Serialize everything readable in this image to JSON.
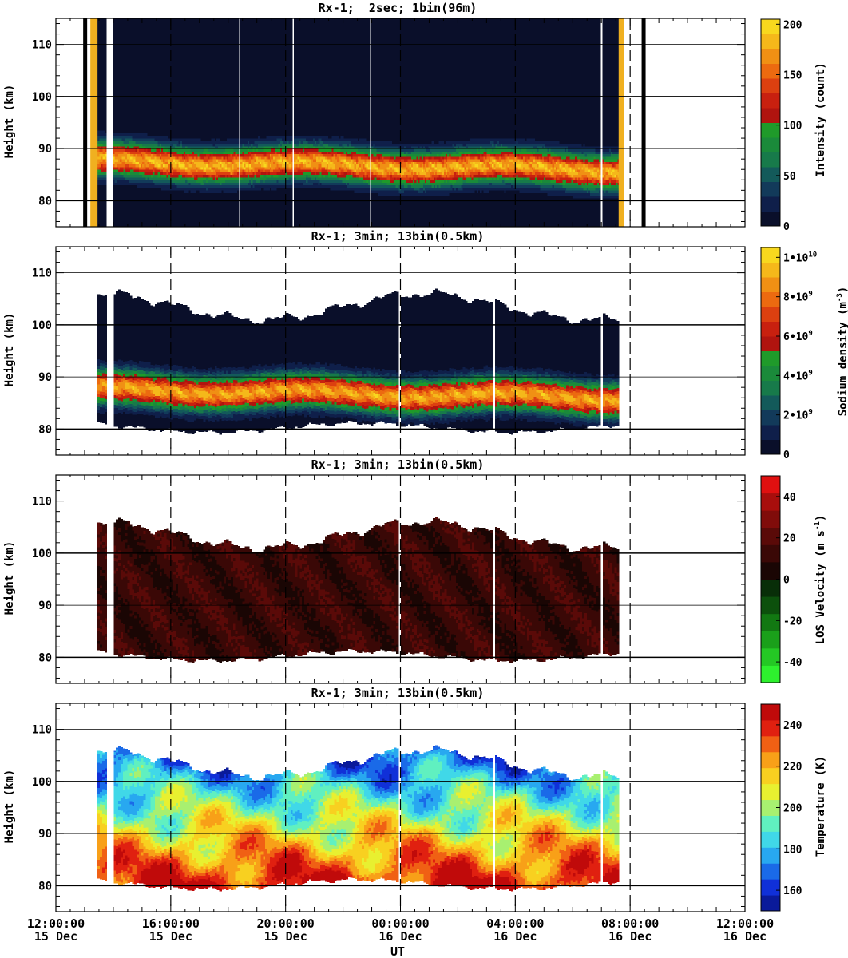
{
  "figure": {
    "x_axis_label": "UT",
    "x_ticks": [
      {
        "time": "12:00:00",
        "date": "15 Dec",
        "hours": 0
      },
      {
        "time": "16:00:00",
        "date": "15 Dec",
        "hours": 4
      },
      {
        "time": "20:00:00",
        "date": "15 Dec",
        "hours": 8
      },
      {
        "time": "00:00:00",
        "date": "16 Dec",
        "hours": 12
      },
      {
        "time": "04:00:00",
        "date": "16 Dec",
        "hours": 16
      },
      {
        "time": "08:00:00",
        "date": "16 Dec",
        "hours": 20
      },
      {
        "time": "12:00:00",
        "date": "16 Dec",
        "hours": 24
      }
    ]
  },
  "chart_data": [
    {
      "type": "heatmap",
      "title": "Rx-1;  2sec; 1bin(96m)",
      "xlabel": "",
      "ylabel": "Height (km)",
      "xlim_hours_after_15dec_1200UT": [
        0,
        24
      ],
      "ylim": [
        75,
        115
      ],
      "y_ticks": [
        80,
        90,
        100,
        110
      ],
      "colorbar": {
        "label": "Intensity (count)",
        "range": [
          0,
          205
        ],
        "ticks": [
          {
            "v": 0,
            "t": "0"
          },
          {
            "v": 50,
            "t": "50"
          },
          {
            "v": 100,
            "t": "100"
          },
          {
            "v": 150,
            "t": "150"
          },
          {
            "v": 200,
            "t": "200"
          }
        ],
        "colors": [
          "#0a0f2a",
          "#0f1f4a",
          "#123a5a",
          "#135a5a",
          "#177a4a",
          "#1a8a3a",
          "#1f9a2a",
          "#b0140f",
          "#c8200f",
          "#dc4010",
          "#ec6a10",
          "#f09014",
          "#f5b81a",
          "#f8d81e"
        ]
      },
      "data_extent_hours": [
        1.45,
        19.6
      ],
      "layer_peak_height_km": 87,
      "layer_lower_edge_km": 80,
      "layer_upper_edge_km": 95
    },
    {
      "type": "heatmap",
      "title": "Rx-1; 3min; 13bin(0.5km)",
      "xlabel": "",
      "ylabel": "Height (km)",
      "xlim_hours_after_15dec_1200UT": [
        0,
        24
      ],
      "ylim": [
        75,
        115
      ],
      "y_ticks": [
        80,
        90,
        100,
        110
      ],
      "colorbar": {
        "label": "Sodium density (m",
        "label_exp": "-3",
        "label_close": ")",
        "range": [
          0,
          10500000000.0
        ],
        "ticks": [
          {
            "v": 0,
            "t": "0",
            "e": ""
          },
          {
            "v": 2000000000.0,
            "t": "2•10",
            "e": "9"
          },
          {
            "v": 4000000000.0,
            "t": "4•10",
            "e": "9"
          },
          {
            "v": 6000000000.0,
            "t": "6•10",
            "e": "9"
          },
          {
            "v": 8000000000.0,
            "t": "8•10",
            "e": "9"
          },
          {
            "v": 10000000000.0,
            "t": "1•10",
            "e": "10"
          }
        ],
        "colors": [
          "#0a0f2a",
          "#0f1f4a",
          "#123a5a",
          "#135a5a",
          "#177a4a",
          "#1a8a3a",
          "#1f9a2a",
          "#b0140f",
          "#c8200f",
          "#dc4010",
          "#ec6a10",
          "#f09014",
          "#f5b81a",
          "#f8d81e"
        ]
      },
      "data_extent_hours": [
        1.45,
        19.6
      ],
      "layer_peak_height_km": 87,
      "top_height_range_km": [
        100,
        107
      ],
      "bottom_height_range_km": [
        78,
        82
      ]
    },
    {
      "type": "heatmap",
      "title": "Rx-1; 3min; 13bin(0.5km)",
      "xlabel": "",
      "ylabel": "Height (km)",
      "xlim_hours_after_15dec_1200UT": [
        0,
        24
      ],
      "ylim": [
        75,
        115
      ],
      "y_ticks": [
        80,
        90,
        100,
        110
      ],
      "colorbar": {
        "label": "LOS Velocity (m s",
        "label_exp": "-1",
        "label_close": ")",
        "range": [
          -50,
          50
        ],
        "ticks": [
          {
            "v": -40,
            "t": "-40"
          },
          {
            "v": -20,
            "t": "-20"
          },
          {
            "v": 0,
            "t": "0"
          },
          {
            "v": 20,
            "t": "20"
          },
          {
            "v": 40,
            "t": "40"
          }
        ],
        "colors": [
          "#2ef02e",
          "#24c824",
          "#1aa01a",
          "#127812",
          "#0c500c",
          "#082e08",
          "#1a0604",
          "#3a0806",
          "#5a0a08",
          "#800c0a",
          "#a80e0c",
          "#e01010"
        ]
      },
      "data_extent_hours": [
        1.45,
        19.6
      ],
      "typical_velocity_ms": 15,
      "top_height_range_km": [
        100,
        107
      ],
      "bottom_height_range_km": [
        78,
        82
      ]
    },
    {
      "type": "heatmap",
      "title": "Rx-1; 3min; 13bin(0.5km)",
      "xlabel": "UT",
      "ylabel": "Height (km)",
      "xlim_hours_after_15dec_1200UT": [
        0,
        24
      ],
      "ylim": [
        75,
        115
      ],
      "y_ticks": [
        80,
        90,
        100,
        110
      ],
      "colorbar": {
        "label": "Temperature (K)",
        "range": [
          150,
          250
        ],
        "ticks": [
          {
            "v": 160,
            "t": "160"
          },
          {
            "v": 180,
            "t": "180"
          },
          {
            "v": 200,
            "t": "200"
          },
          {
            "v": 220,
            "t": "220"
          },
          {
            "v": 240,
            "t": "240"
          }
        ],
        "colors": [
          "#0a1a9a",
          "#1030d8",
          "#1a6ae8",
          "#28a8f0",
          "#40d8e8",
          "#60f0c0",
          "#a8f070",
          "#e8f030",
          "#f8d020",
          "#f8a018",
          "#f06014",
          "#e02010",
          "#c00a0a"
        ]
      },
      "data_extent_hours": [
        1.45,
        19.6
      ],
      "temperature_at_100km_K": 175,
      "temperature_at_82km_K": 235
    }
  ]
}
